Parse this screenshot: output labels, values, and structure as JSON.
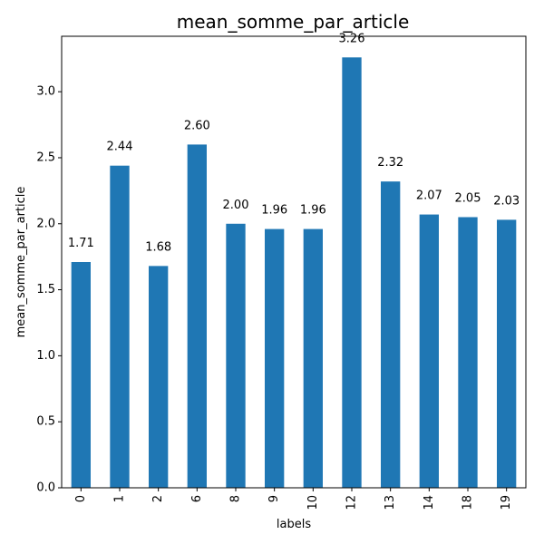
{
  "chart_data": {
    "type": "bar",
    "title": "mean_somme_par_article",
    "xlabel": "labels",
    "ylabel": "mean_somme_par_article",
    "categories": [
      "0",
      "1",
      "2",
      "6",
      "8",
      "9",
      "10",
      "12",
      "13",
      "14",
      "18",
      "19"
    ],
    "values": [
      1.71,
      2.44,
      1.68,
      2.6,
      2.0,
      1.96,
      1.96,
      3.26,
      2.32,
      2.07,
      2.05,
      2.03
    ],
    "data_labels": [
      "1.71",
      "2.44",
      "1.68",
      "2.60",
      "2.00",
      "1.96",
      "1.96",
      "3.26",
      "2.32",
      "2.07",
      "2.05",
      "2.03"
    ],
    "yticks": [
      0.0,
      0.5,
      1.0,
      1.5,
      2.0,
      2.5,
      3.0
    ],
    "ytick_labels": [
      "0.0",
      "0.5",
      "1.0",
      "1.5",
      "2.0",
      "2.5",
      "3.0"
    ],
    "ylim": [
      0,
      3.42
    ],
    "bar_color": "#1f77b4",
    "grid": false,
    "legend": "none"
  }
}
